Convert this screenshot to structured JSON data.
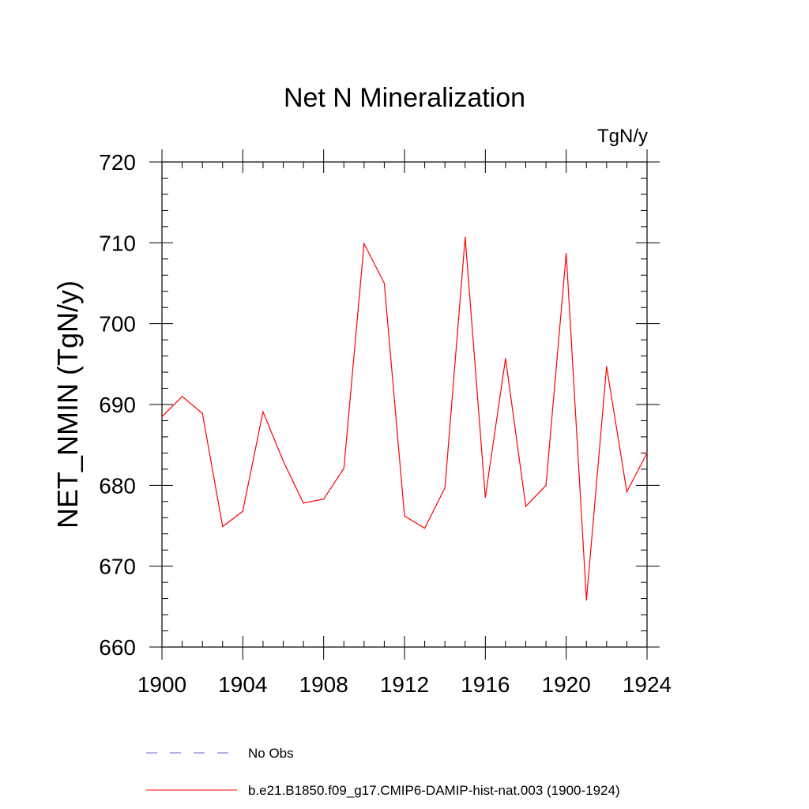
{
  "chart_data": {
    "type": "line",
    "title": "Net N Mineralization",
    "units_label": "TgN/y",
    "ylabel": "NET_NMIN  (TgN/y)",
    "xlabel": "",
    "xlim": [
      1900,
      1924
    ],
    "ylim": [
      660,
      720
    ],
    "x_ticks": [
      "1900",
      "1904",
      "1908",
      "1912",
      "1916",
      "1920",
      "1924"
    ],
    "y_ticks": [
      "660",
      "670",
      "680",
      "690",
      "700",
      "710",
      "720"
    ],
    "x_tick_values": [
      1900,
      1904,
      1908,
      1912,
      1916,
      1920,
      1924
    ],
    "y_tick_values": [
      660,
      670,
      680,
      690,
      700,
      710,
      720
    ],
    "grid": false,
    "legend_position": "bottom",
    "x": [
      1900,
      1901,
      1902,
      1903,
      1904,
      1905,
      1906,
      1907,
      1908,
      1909,
      1910,
      1911,
      1912,
      1913,
      1914,
      1915,
      1916,
      1917,
      1918,
      1919,
      1920,
      1921,
      1922,
      1923,
      1924
    ],
    "series": [
      {
        "name": "b.e21.B1850.f09_g17.CMIP6-DAMIP-hist-nat.003 (1900-1924)",
        "color": "#ff0000",
        "style": "solid",
        "values": [
          688.5,
          691.0,
          688.9,
          674.9,
          676.8,
          689.1,
          683.0,
          677.8,
          678.3,
          682.1,
          709.9,
          705.0,
          676.2,
          674.7,
          679.7,
          710.7,
          678.5,
          695.7,
          677.4,
          680.0,
          708.7,
          665.8,
          694.7,
          679.2,
          684.0
        ]
      }
    ],
    "legend": [
      {
        "label": "No Obs",
        "color": "#6a6acd",
        "style": "dashed"
      },
      {
        "label": "b.e21.B1850.f09_g17.CMIP6-DAMIP-hist-nat.003 (1900-1924)",
        "color": "#ff0000",
        "style": "solid"
      }
    ]
  }
}
